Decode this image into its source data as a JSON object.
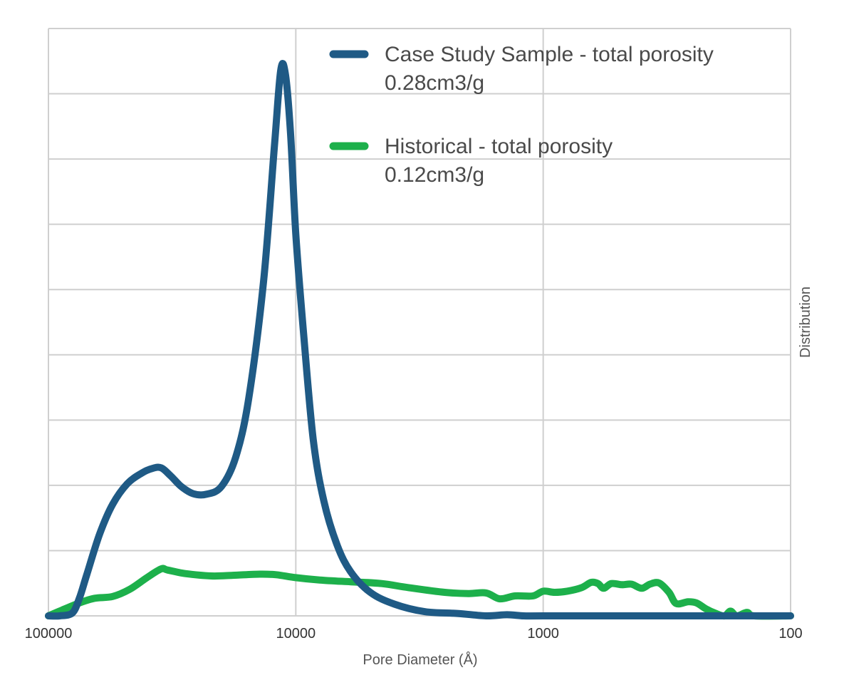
{
  "chart_data": {
    "type": "line",
    "title": "",
    "xlabel": "Pore Diameter (Å)",
    "ylabel": "Distribution",
    "x_scale": "log",
    "x_reversed": true,
    "xlim": [
      100000,
      100
    ],
    "ylim": [
      0,
      100
    ],
    "x_ticks": [
      "100000",
      "10000",
      "1000",
      "100"
    ],
    "grid": true,
    "legend_position": "top-right",
    "series": [
      {
        "name": "Case Study Sample - total porosity 0.28cm3/g",
        "legend_lines": [
          "Case Study Sample - total porosity",
          "0.28cm3/g"
        ],
        "color": "#1f5a85",
        "points": [
          [
            100000,
            0
          ],
          [
            90000,
            0
          ],
          [
            80000,
            0.5
          ],
          [
            75000,
            3
          ],
          [
            70000,
            7
          ],
          [
            62000,
            14
          ],
          [
            55000,
            19
          ],
          [
            48000,
            22.5
          ],
          [
            42000,
            24.3
          ],
          [
            38000,
            25.1
          ],
          [
            35000,
            25.2
          ],
          [
            32000,
            23.8
          ],
          [
            29000,
            22
          ],
          [
            26000,
            20.8
          ],
          [
            23000,
            20.7
          ],
          [
            20000,
            22
          ],
          [
            17500,
            27
          ],
          [
            15500,
            37
          ],
          [
            13500,
            57
          ],
          [
            12200,
            80
          ],
          [
            11500,
            93
          ],
          [
            11000,
            92
          ],
          [
            10500,
            82
          ],
          [
            10000,
            65
          ],
          [
            9300,
            48
          ],
          [
            8500,
            30
          ],
          [
            7700,
            19.5
          ],
          [
            6800,
            12
          ],
          [
            6000,
            7.5
          ],
          [
            5000,
            4
          ],
          [
            4000,
            2
          ],
          [
            3000,
            0.7
          ],
          [
            2200,
            0.4
          ],
          [
            1700,
            0
          ],
          [
            1400,
            0.2
          ],
          [
            1200,
            0
          ],
          [
            1000,
            0
          ],
          [
            500,
            0
          ],
          [
            300,
            0
          ],
          [
            200,
            0
          ],
          [
            100,
            0
          ]
        ]
      },
      {
        "name": "Historical - total porosity 0.12cm3/g",
        "legend_lines": [
          "Historical - total porosity",
          "0.12cm3/g"
        ],
        "color": "#1db04b",
        "points": [
          [
            100000,
            0
          ],
          [
            88000,
            1
          ],
          [
            75000,
            2.2
          ],
          [
            65000,
            3
          ],
          [
            55000,
            3.3
          ],
          [
            47000,
            4.5
          ],
          [
            40000,
            6.5
          ],
          [
            35000,
            8
          ],
          [
            33000,
            7.8
          ],
          [
            28000,
            7.2
          ],
          [
            22000,
            6.8
          ],
          [
            18000,
            6.9
          ],
          [
            14000,
            7.1
          ],
          [
            12000,
            7
          ],
          [
            10000,
            6.5
          ],
          [
            8000,
            6.1
          ],
          [
            6000,
            5.8
          ],
          [
            4500,
            5.5
          ],
          [
            3500,
            4.8
          ],
          [
            2500,
            4
          ],
          [
            2000,
            3.8
          ],
          [
            1700,
            3.9
          ],
          [
            1500,
            2.9
          ],
          [
            1300,
            3.4
          ],
          [
            1100,
            3.4
          ],
          [
            1000,
            4.2
          ],
          [
            900,
            4.0
          ],
          [
            800,
            4.2
          ],
          [
            700,
            4.8
          ],
          [
            640,
            5.7
          ],
          [
            600,
            5.5
          ],
          [
            570,
            4.7
          ],
          [
            530,
            5.5
          ],
          [
            480,
            5.3
          ],
          [
            440,
            5.4
          ],
          [
            400,
            4.7
          ],
          [
            370,
            5.4
          ],
          [
            340,
            5.6
          ],
          [
            310,
            4.0
          ],
          [
            290,
            2.1
          ],
          [
            260,
            2.4
          ],
          [
            240,
            2.2
          ],
          [
            220,
            1.2
          ],
          [
            200,
            0.4
          ],
          [
            185,
            0
          ],
          [
            175,
            0.8
          ],
          [
            165,
            0
          ],
          [
            150,
            0.6
          ],
          [
            140,
            0
          ],
          [
            100,
            0
          ]
        ]
      }
    ]
  }
}
